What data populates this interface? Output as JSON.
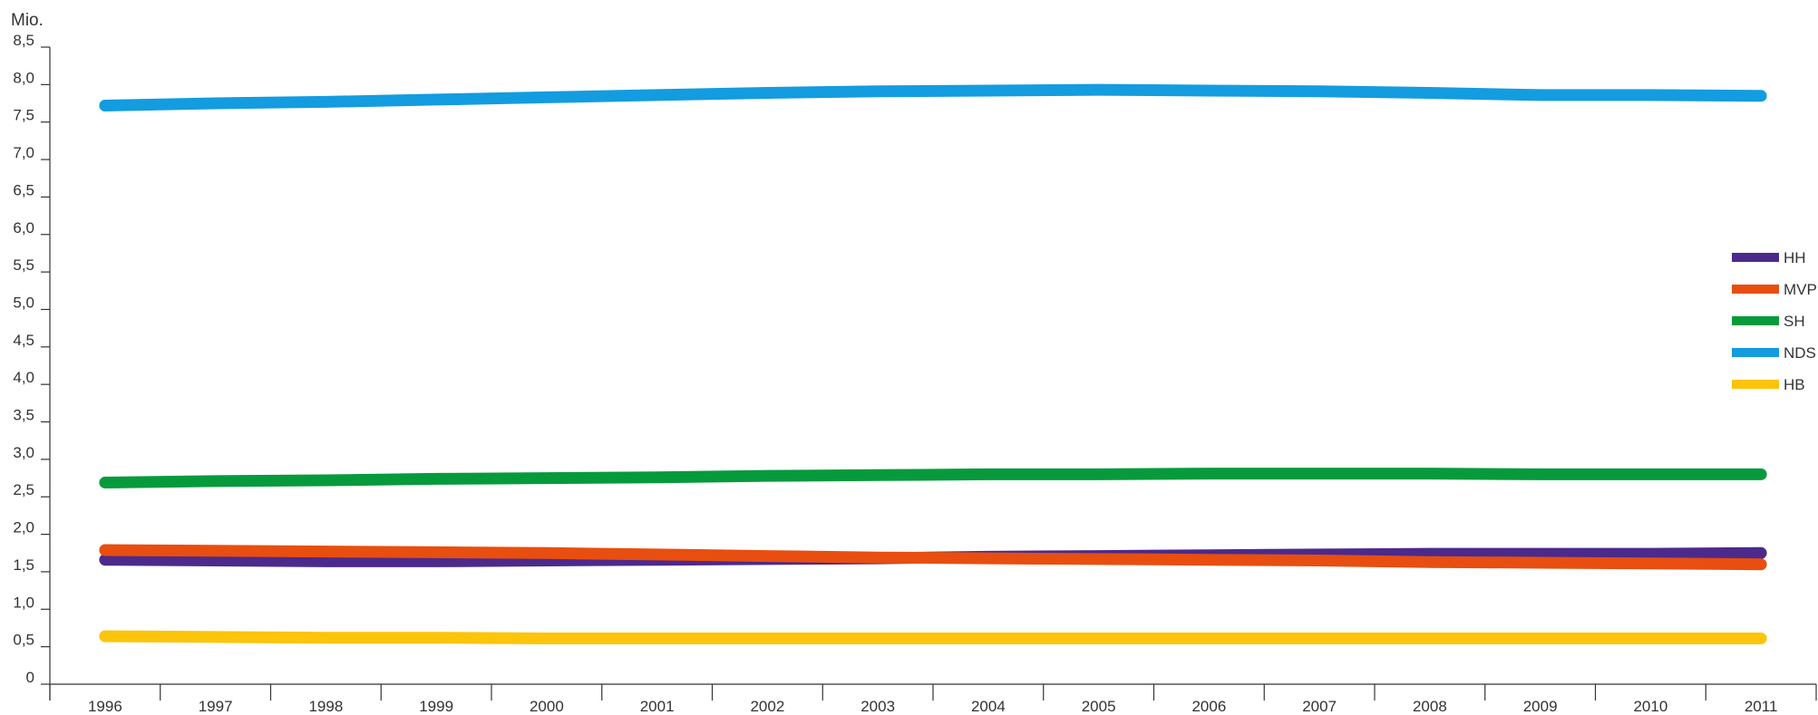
{
  "chart_data": {
    "type": "line",
    "title": "",
    "ylabel": "Mio.",
    "xlabel": "",
    "categories": [
      "1996",
      "1997",
      "1998",
      "1999",
      "2000",
      "2001",
      "2002",
      "2003",
      "2004",
      "2005",
      "2006",
      "2007",
      "2008",
      "2009",
      "2010",
      "2011"
    ],
    "ylim": [
      0,
      8.5
    ],
    "yticks": [
      0,
      0.5,
      1.0,
      1.5,
      2.0,
      2.5,
      3.0,
      3.5,
      4.0,
      4.5,
      5.0,
      5.5,
      6.0,
      6.5,
      7.0,
      7.5,
      8.0,
      8.5
    ],
    "ytick_labels": [
      "0",
      "0,5",
      "1,0",
      "1,5",
      "2,0",
      "2,5",
      "3,0",
      "3,5",
      "4,0",
      "4,5",
      "5,0",
      "5,5",
      "6,0",
      "6,5",
      "7,0",
      "7,5",
      "8,0",
      "8,5"
    ],
    "grid": false,
    "legend_position": "right",
    "series": [
      {
        "name": "HH",
        "color": "#4b2a8c",
        "values": [
          1.66,
          1.65,
          1.64,
          1.64,
          1.65,
          1.66,
          1.67,
          1.68,
          1.7,
          1.71,
          1.72,
          1.73,
          1.74,
          1.74,
          1.74,
          1.75
        ]
      },
      {
        "name": "MVP",
        "color": "#e84e0f",
        "values": [
          1.79,
          1.78,
          1.77,
          1.76,
          1.75,
          1.73,
          1.71,
          1.69,
          1.68,
          1.67,
          1.66,
          1.65,
          1.63,
          1.62,
          1.61,
          1.6
        ]
      },
      {
        "name": "SH",
        "color": "#079a3c",
        "values": [
          2.69,
          2.71,
          2.72,
          2.74,
          2.75,
          2.76,
          2.78,
          2.79,
          2.8,
          2.8,
          2.81,
          2.81,
          2.81,
          2.8,
          2.8,
          2.8
        ]
      },
      {
        "name": "NDS",
        "color": "#139cdf",
        "values": [
          7.72,
          7.75,
          7.77,
          7.8,
          7.83,
          7.86,
          7.89,
          7.91,
          7.92,
          7.93,
          7.92,
          7.91,
          7.89,
          7.86,
          7.86,
          7.85
        ]
      },
      {
        "name": "HB",
        "color": "#fcc40a",
        "values": [
          0.64,
          0.63,
          0.62,
          0.62,
          0.61,
          0.61,
          0.61,
          0.61,
          0.61,
          0.61,
          0.61,
          0.61,
          0.61,
          0.61,
          0.61,
          0.61
        ]
      }
    ]
  }
}
